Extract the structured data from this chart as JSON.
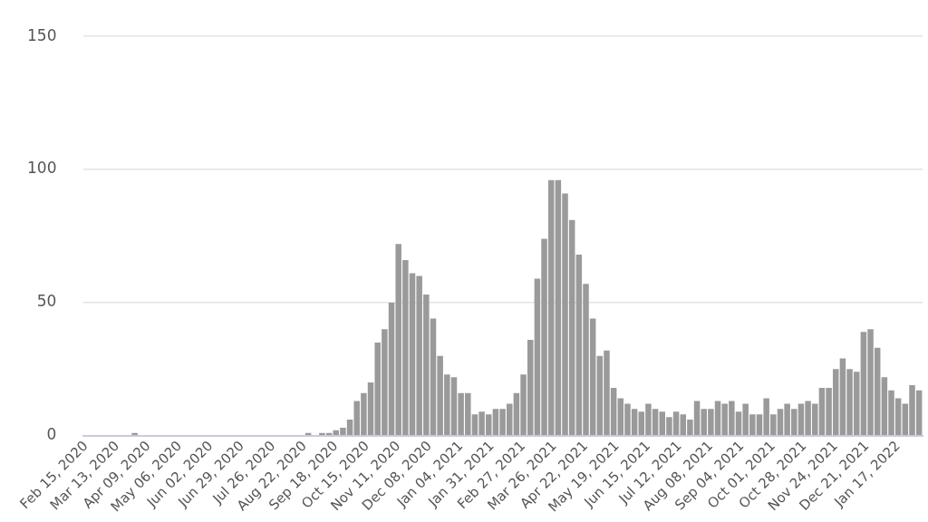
{
  "chart_data": {
    "type": "bar",
    "x": [
      "2020-02-15",
      "2020-02-21",
      "2020-02-27",
      "2020-03-04",
      "2020-03-10",
      "2020-03-16",
      "2020-03-22",
      "2020-03-28",
      "2020-04-03",
      "2020-04-09",
      "2020-04-15",
      "2020-04-21",
      "2020-04-27",
      "2020-05-03",
      "2020-05-09",
      "2020-05-15",
      "2020-05-21",
      "2020-05-27",
      "2020-06-02",
      "2020-06-08",
      "2020-06-14",
      "2020-06-20",
      "2020-06-26",
      "2020-07-02",
      "2020-07-08",
      "2020-07-14",
      "2020-07-20",
      "2020-07-26",
      "2020-08-01",
      "2020-08-07",
      "2020-08-13",
      "2020-08-19",
      "2020-08-25",
      "2020-08-31",
      "2020-09-06",
      "2020-09-12",
      "2020-09-18",
      "2020-09-24",
      "2020-09-30",
      "2020-10-06",
      "2020-10-12",
      "2020-10-18",
      "2020-10-24",
      "2020-10-30",
      "2020-11-05",
      "2020-11-11",
      "2020-11-17",
      "2020-11-23",
      "2020-11-29",
      "2020-12-05",
      "2020-12-11",
      "2020-12-17",
      "2020-12-23",
      "2020-12-29",
      "2021-01-04",
      "2021-01-10",
      "2021-01-16",
      "2021-01-22",
      "2021-01-28",
      "2021-02-03",
      "2021-02-09",
      "2021-02-15",
      "2021-02-21",
      "2021-02-27",
      "2021-03-05",
      "2021-03-11",
      "2021-03-17",
      "2021-03-23",
      "2021-03-29",
      "2021-04-04",
      "2021-04-10",
      "2021-04-16",
      "2021-04-22",
      "2021-04-28",
      "2021-05-04",
      "2021-05-10",
      "2021-05-16",
      "2021-05-22",
      "2021-05-28",
      "2021-06-03",
      "2021-06-09",
      "2021-06-15",
      "2021-06-21",
      "2021-06-27",
      "2021-07-03",
      "2021-07-09",
      "2021-07-15",
      "2021-07-21",
      "2021-07-27",
      "2021-08-02",
      "2021-08-08",
      "2021-08-14",
      "2021-08-20",
      "2021-08-26",
      "2021-09-01",
      "2021-09-07",
      "2021-09-13",
      "2021-09-19",
      "2021-09-25",
      "2021-10-01",
      "2021-10-07",
      "2021-10-13",
      "2021-10-19",
      "2021-10-25",
      "2021-10-31",
      "2021-11-06",
      "2021-11-12",
      "2021-11-18",
      "2021-11-24",
      "2021-11-30",
      "2021-12-06",
      "2021-12-12",
      "2021-12-18",
      "2021-12-24",
      "2021-12-30",
      "2022-01-05",
      "2022-01-11",
      "2022-01-17",
      "2022-01-23",
      "2022-01-29",
      "2022-02-04"
    ],
    "values": [
      0,
      0,
      0,
      0,
      0,
      0,
      0,
      1,
      0,
      0,
      0,
      0,
      0,
      0,
      0,
      0,
      0,
      0,
      0,
      0,
      0,
      0,
      0,
      0,
      0,
      0,
      0,
      0,
      0,
      0,
      0,
      0,
      1,
      0,
      1,
      1,
      2,
      3,
      6,
      13,
      16,
      20,
      35,
      40,
      50,
      72,
      66,
      61,
      60,
      53,
      44,
      30,
      23,
      22,
      16,
      16,
      8,
      9,
      8,
      10,
      10,
      12,
      16,
      23,
      36,
      59,
      74,
      96,
      96,
      91,
      81,
      68,
      57,
      44,
      30,
      32,
      18,
      14,
      12,
      10,
      9,
      12,
      10,
      9,
      7,
      9,
      8,
      6,
      13,
      10,
      10,
      13,
      12,
      13,
      9,
      12,
      8,
      8,
      14,
      8,
      10,
      12,
      10,
      12,
      13,
      12,
      18,
      18,
      25,
      29,
      25,
      24,
      39,
      40,
      33,
      22,
      17,
      14,
      12,
      19,
      17
    ],
    "color": "#9a9a9a",
    "xlim": [
      "2020-02-13",
      "2022-02-07"
    ],
    "xticks": [
      {
        "value": "2020-02-15",
        "label": "Feb 15, 2020"
      },
      {
        "value": "2020-03-13",
        "label": "Mar 13, 2020"
      },
      {
        "value": "2020-04-09",
        "label": "Apr 09, 2020"
      },
      {
        "value": "2020-05-06",
        "label": "May 06, 2020"
      },
      {
        "value": "2020-06-02",
        "label": "Jun 02, 2020"
      },
      {
        "value": "2020-06-29",
        "label": "Jun 29, 2020"
      },
      {
        "value": "2020-07-26",
        "label": "Jul 26, 2020"
      },
      {
        "value": "2020-08-22",
        "label": "Aug 22, 2020"
      },
      {
        "value": "2020-09-18",
        "label": "Sep 18, 2020"
      },
      {
        "value": "2020-10-15",
        "label": "Oct 15, 2020"
      },
      {
        "value": "2020-11-11",
        "label": "Nov 11, 2020"
      },
      {
        "value": "2020-12-08",
        "label": "Dec 08, 2020"
      },
      {
        "value": "2021-01-04",
        "label": "Jan 04, 2021"
      },
      {
        "value": "2021-01-31",
        "label": "Jan 31, 2021"
      },
      {
        "value": "2021-02-27",
        "label": "Feb 27, 2021"
      },
      {
        "value": "2021-03-26",
        "label": "Mar 26, 2021"
      },
      {
        "value": "2021-04-22",
        "label": "Apr 22, 2021"
      },
      {
        "value": "2021-05-19",
        "label": "May 19, 2021"
      },
      {
        "value": "2021-06-15",
        "label": "Jun 15, 2021"
      },
      {
        "value": "2021-07-12",
        "label": "Jul 12, 2021"
      },
      {
        "value": "2021-08-08",
        "label": "Aug 08, 2021"
      },
      {
        "value": "2021-09-04",
        "label": "Sep 04, 2021"
      },
      {
        "value": "2021-10-01",
        "label": "Oct 01, 2021"
      },
      {
        "value": "2021-10-28",
        "label": "Oct 28, 2021"
      },
      {
        "value": "2021-11-24",
        "label": "Nov 24, 2021"
      },
      {
        "value": "2021-12-21",
        "label": "Dec 21, 2021"
      },
      {
        "value": "2022-01-17",
        "label": "Jan 17, 2022"
      }
    ],
    "ylim": [
      0,
      150
    ],
    "yticks": [
      0,
      50,
      100,
      150
    ],
    "grid": "y",
    "legend": false
  }
}
